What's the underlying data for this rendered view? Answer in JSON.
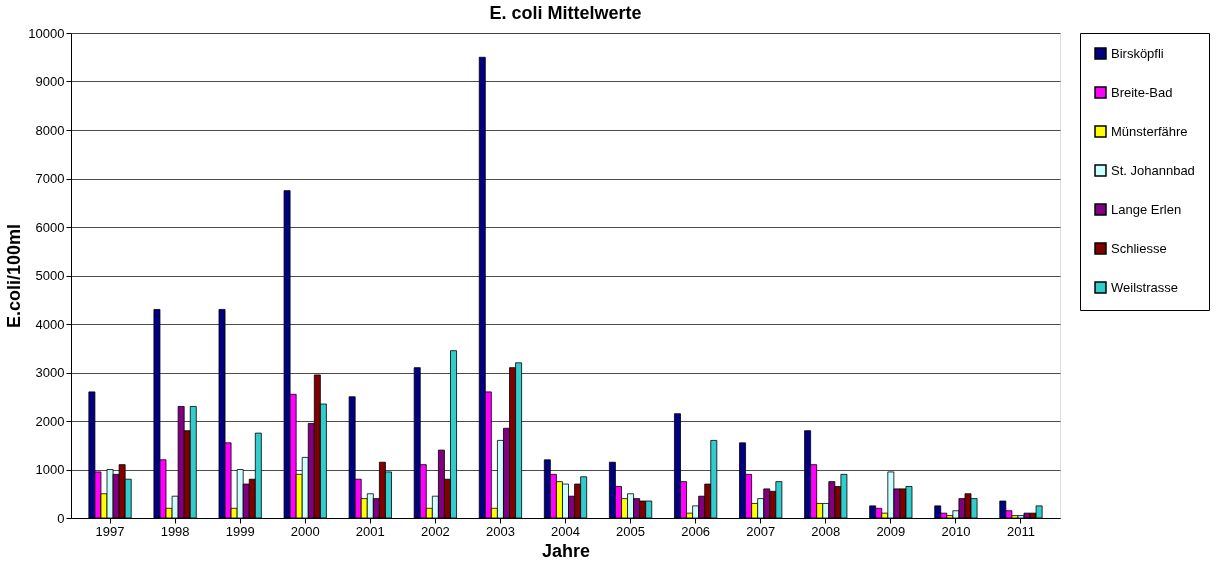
{
  "chart_data": {
    "type": "bar",
    "title": "E. coli Mittelwerte",
    "xlabel": "Jahre",
    "ylabel": "E.coli/100ml",
    "categories": [
      "1997",
      "1998",
      "1999",
      "2000",
      "2001",
      "2002",
      "2003",
      "2004",
      "2005",
      "2006",
      "2007",
      "2008",
      "2009",
      "2010",
      "2011"
    ],
    "ylim": [
      0,
      10000
    ],
    "yticks": [
      0,
      1000,
      2000,
      3000,
      4000,
      5000,
      6000,
      7000,
      8000,
      9000,
      10000
    ],
    "grid": "y",
    "legend": "right",
    "series": [
      {
        "name": "Birsköpfli",
        "color": "#000080",
        "values": [
          2600,
          4300,
          4300,
          6750,
          2500,
          3100,
          9500,
          1200,
          1150,
          2150,
          1550,
          1800,
          250,
          250,
          350
        ]
      },
      {
        "name": "Breite-Bad",
        "color": "#ff00ff",
        "values": [
          950,
          1200,
          1550,
          2550,
          800,
          1100,
          2600,
          900,
          650,
          750,
          900,
          1100,
          200,
          100,
          150
        ]
      },
      {
        "name": "Münsterfähre",
        "color": "#ffff00",
        "values": [
          500,
          200,
          200,
          900,
          400,
          200,
          200,
          750,
          400,
          100,
          300,
          300,
          100,
          50,
          50
        ]
      },
      {
        "name": "St. Johannbad",
        "color": "#ccffff",
        "values": [
          1000,
          450,
          1000,
          1250,
          500,
          450,
          1600,
          700,
          500,
          250,
          400,
          300,
          950,
          150,
          50
        ]
      },
      {
        "name": "Lange Erlen",
        "color": "#800080",
        "values": [
          900,
          2300,
          700,
          1950,
          400,
          1400,
          1850,
          450,
          400,
          450,
          600,
          750,
          600,
          400,
          100
        ]
      },
      {
        "name": "Schliesse",
        "color": "#800000",
        "values": [
          1100,
          1800,
          800,
          2950,
          1150,
          800,
          3100,
          700,
          350,
          700,
          550,
          650,
          600,
          500,
          100
        ]
      },
      {
        "name": "Weilstrasse",
        "color": "#33cccc",
        "values": [
          800,
          2300,
          1750,
          2350,
          950,
          3450,
          3200,
          850,
          350,
          1600,
          750,
          900,
          650,
          400,
          250
        ]
      }
    ]
  }
}
